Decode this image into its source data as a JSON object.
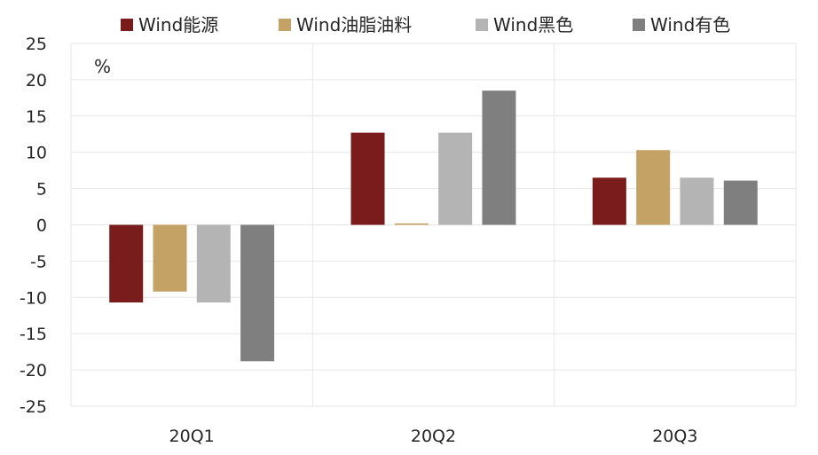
{
  "chart_data": {
    "type": "bar",
    "unit_label": "%",
    "categories": [
      "20Q1",
      "20Q2",
      "20Q3"
    ],
    "ylim": [
      -25,
      25
    ],
    "yticks": [
      25,
      20,
      15,
      10,
      5,
      0,
      -5,
      -10,
      -15,
      -20,
      -25
    ],
    "grid": true,
    "legend_position": "top",
    "series": [
      {
        "name": "Wind能源",
        "color": "#7B1C1C",
        "values": [
          -10.7,
          12.7,
          6.5
        ]
      },
      {
        "name": "Wind油脂油料",
        "color": "#C4A165",
        "values": [
          -9.2,
          0.2,
          10.3
        ]
      },
      {
        "name": "Wind黑色",
        "color": "#B4B4B4",
        "values": [
          -10.7,
          12.7,
          6.5
        ]
      },
      {
        "name": "Wind有色",
        "color": "#7F7F7F",
        "values": [
          -18.8,
          18.5,
          6.1
        ]
      }
    ]
  }
}
